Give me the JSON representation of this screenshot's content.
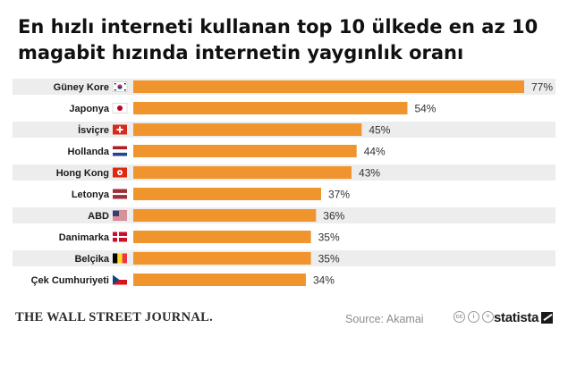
{
  "chart_data": {
    "type": "bar",
    "orientation": "horizontal",
    "title": "En hızlı interneti kullanan top 10 ülkede en az 10 magabit hızında internetin yaygınlık oranı",
    "categories": [
      "Güney Kore",
      "Japonya",
      "İsviçre",
      "Hollanda",
      "Hong Kong",
      "Letonya",
      "ABD",
      "Danimarka",
      "Belçika",
      "Çek Cumhuriyeti"
    ],
    "values": [
      77,
      54,
      45,
      44,
      43,
      37,
      36,
      35,
      35,
      34
    ],
    "value_suffix": "%",
    "flags": [
      "south-korea-flag-icon",
      "japan-flag-icon",
      "switzerland-flag-icon",
      "netherlands-flag-icon",
      "hong-kong-flag-icon",
      "latvia-flag-icon",
      "usa-flag-icon",
      "denmark-flag-icon",
      "belgium-flag-icon",
      "czech-flag-icon"
    ],
    "xlim": [
      0,
      77
    ],
    "grid": false,
    "colors": {
      "bar": "#f0952e",
      "row_band": "#ededed"
    }
  },
  "footer": {
    "publisher": "THE WALL STREET JOURNAL.",
    "source": "Source: Akamai",
    "brand": "statista"
  }
}
